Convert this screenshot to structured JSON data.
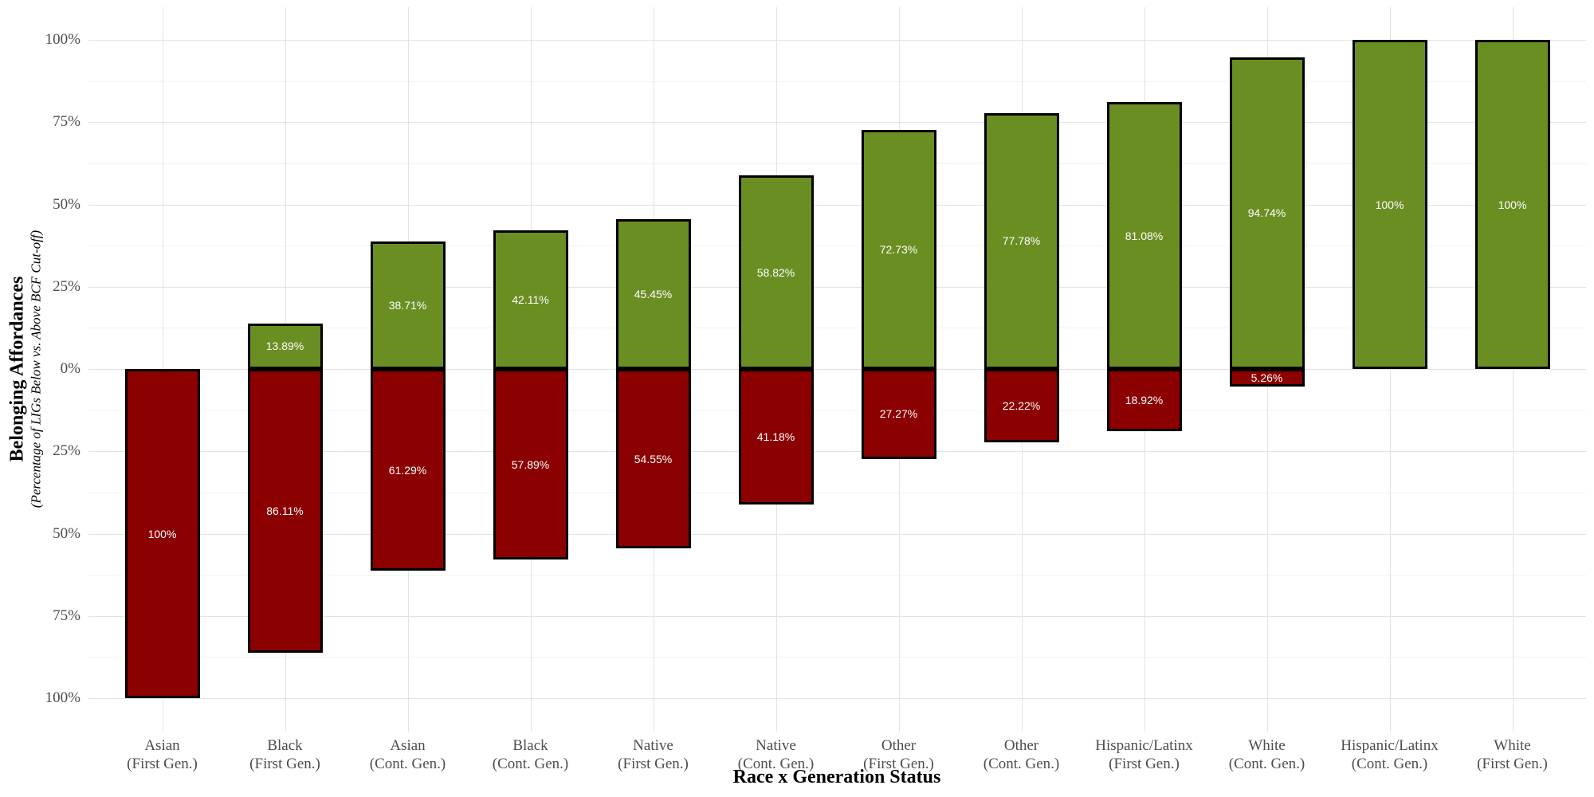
{
  "chart_data": {
    "type": "bar",
    "subtype": "diverging-stacked-vertical",
    "title": "",
    "xlabel": "Race x Generation Status",
    "ylabel": "Belonging Affordances",
    "ylabel_sub": "(Percentage of LIGs Below vs. Above BCF Cut-off)",
    "categories": [
      {
        "line1": "Asian",
        "line2": "(First Gen.)"
      },
      {
        "line1": "Black",
        "line2": "(First Gen.)"
      },
      {
        "line1": "Asian",
        "line2": "(Cont. Gen.)"
      },
      {
        "line1": "Black",
        "line2": "(Cont. Gen.)"
      },
      {
        "line1": "Native",
        "line2": "(First Gen.)"
      },
      {
        "line1": "Native",
        "line2": "(Cont. Gen.)"
      },
      {
        "line1": "Other",
        "line2": "(First Gen.)"
      },
      {
        "line1": "Other",
        "line2": "(Cont. Gen.)"
      },
      {
        "line1": "Hispanic/Latinx",
        "line2": "(First Gen.)"
      },
      {
        "line1": "White",
        "line2": "(Cont. Gen.)"
      },
      {
        "line1": "Hispanic/Latinx",
        "line2": "(Cont. Gen.)"
      },
      {
        "line1": "White",
        "line2": "(First Gen.)"
      }
    ],
    "series": [
      {
        "name": "Above BCF Cut-off",
        "direction": "above",
        "color": "#6B8E23",
        "values": [
          0,
          13.89,
          38.71,
          42.11,
          45.45,
          58.82,
          72.73,
          77.78,
          81.08,
          94.74,
          100,
          100
        ],
        "labels": [
          "",
          "13.89%",
          "38.71%",
          "42.11%",
          "45.45%",
          "58.82%",
          "72.73%",
          "77.78%",
          "81.08%",
          "94.74%",
          "100%",
          "100%"
        ]
      },
      {
        "name": "Below BCF Cut-off",
        "direction": "below",
        "color": "#8B0000",
        "values": [
          100,
          86.11,
          61.29,
          57.89,
          54.55,
          41.18,
          27.27,
          22.22,
          18.92,
          5.26,
          0,
          0
        ],
        "labels": [
          "100%",
          "86.11%",
          "61.29%",
          "57.89%",
          "54.55%",
          "41.18%",
          "27.27%",
          "22.22%",
          "18.92%",
          "5.26%",
          "",
          ""
        ]
      }
    ],
    "y_axis": {
      "tick_labels": [
        "100%",
        "75%",
        "50%",
        "25%",
        "0%",
        "25%",
        "50%",
        "75%",
        "100%"
      ],
      "tick_values": [
        100,
        75,
        50,
        25,
        0,
        -25,
        -50,
        -75,
        -100
      ],
      "minor_tick_values": [
        87.5,
        62.5,
        37.5,
        12.5,
        -12.5,
        -37.5,
        -62.5,
        -87.5
      ],
      "ylim": [
        -100,
        100
      ],
      "grid": "on"
    },
    "colors": {
      "above_fill": "#6B8E23",
      "below_fill": "#8B0000",
      "bar_border": "#000000",
      "grid_major": "#e3e3e3",
      "grid_minor": "#f2f2f2",
      "axis_text": "#4d4d4d",
      "axis_title": "#000000",
      "bar_label_text": "#ffffff",
      "background": "#ffffff"
    }
  }
}
